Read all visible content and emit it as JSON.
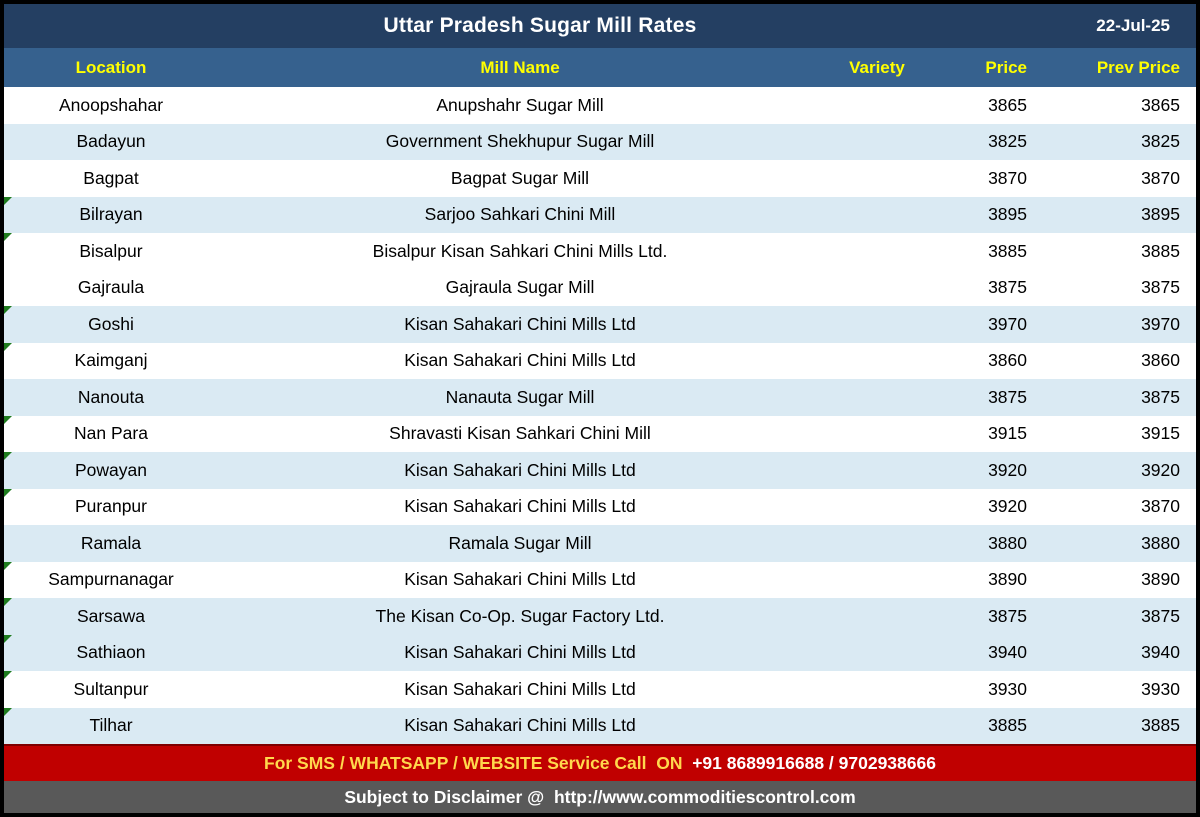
{
  "title_bar": {
    "title": "Uttar Pradesh Sugar Mill Rates",
    "date": "22-Jul-25"
  },
  "columns": {
    "location": "Location",
    "mill_name": "Mill Name",
    "variety": "Variety",
    "price": "Price",
    "prev_price": "Prev Price"
  },
  "rows": [
    {
      "location": "Anoopshahar",
      "mill_name": "Anupshahr Sugar Mill",
      "variety": "",
      "price": "3865",
      "prev_price": "3865",
      "shaded": false,
      "marker": false
    },
    {
      "location": "Badayun",
      "mill_name": "Government Shekhupur Sugar Mill",
      "variety": "",
      "price": "3825",
      "prev_price": "3825",
      "shaded": true,
      "marker": false
    },
    {
      "location": "Bagpat",
      "mill_name": "Bagpat Sugar Mill",
      "variety": "",
      "price": "3870",
      "prev_price": "3870",
      "shaded": false,
      "marker": false
    },
    {
      "location": "Bilrayan",
      "mill_name": "Sarjoo Sahkari Chini Mill",
      "variety": "",
      "price": "3895",
      "prev_price": "3895",
      "shaded": true,
      "marker": true
    },
    {
      "location": "Bisalpur",
      "mill_name": "Bisalpur Kisan Sahkari Chini Mills Ltd.",
      "variety": "",
      "price": "3885",
      "prev_price": "3885",
      "shaded": false,
      "marker": true
    },
    {
      "location": "Gajraula",
      "mill_name": "Gajraula Sugar Mill",
      "variety": "",
      "price": "3875",
      "prev_price": "3875",
      "shaded": false,
      "marker": false
    },
    {
      "location": "Goshi",
      "mill_name": "Kisan Sahakari Chini Mills Ltd",
      "variety": "",
      "price": "3970",
      "prev_price": "3970",
      "shaded": true,
      "marker": true
    },
    {
      "location": "Kaimganj",
      "mill_name": "Kisan Sahakari Chini Mills Ltd",
      "variety": "",
      "price": "3860",
      "prev_price": "3860",
      "shaded": false,
      "marker": true
    },
    {
      "location": "Nanouta",
      "mill_name": "Nanauta Sugar Mill",
      "variety": "",
      "price": "3875",
      "prev_price": "3875",
      "shaded": true,
      "marker": false
    },
    {
      "location": "Nan Para",
      "mill_name": "Shravasti Kisan Sahkari Chini Mill",
      "variety": "",
      "price": "3915",
      "prev_price": "3915",
      "shaded": false,
      "marker": true
    },
    {
      "location": "Powayan",
      "mill_name": "Kisan Sahakari Chini Mills Ltd",
      "variety": "",
      "price": "3920",
      "prev_price": "3920",
      "shaded": true,
      "marker": true
    },
    {
      "location": "Puranpur",
      "mill_name": "Kisan Sahakari Chini Mills Ltd",
      "variety": "",
      "price": "3920",
      "prev_price": "3870",
      "shaded": false,
      "marker": true
    },
    {
      "location": "Ramala",
      "mill_name": "Ramala Sugar Mill",
      "variety": "",
      "price": "3880",
      "prev_price": "3880",
      "shaded": true,
      "marker": false
    },
    {
      "location": "Sampurnanagar",
      "mill_name": "Kisan Sahakari Chini Mills Ltd",
      "variety": "",
      "price": "3890",
      "prev_price": "3890",
      "shaded": false,
      "marker": true
    },
    {
      "location": "Sarsawa",
      "mill_name": "The Kisan Co-Op. Sugar Factory Ltd.",
      "variety": "",
      "price": "3875",
      "prev_price": "3875",
      "shaded": true,
      "marker": true
    },
    {
      "location": "Sathiaon",
      "mill_name": "Kisan Sahakari Chini Mills Ltd",
      "variety": "",
      "price": "3940",
      "prev_price": "3940",
      "shaded": true,
      "marker": true
    },
    {
      "location": "Sultanpur",
      "mill_name": "Kisan Sahakari Chini Mills Ltd",
      "variety": "",
      "price": "3930",
      "prev_price": "3930",
      "shaded": false,
      "marker": true
    },
    {
      "location": "Tilhar",
      "mill_name": "Kisan Sahakari Chini Mills Ltd",
      "variety": "",
      "price": "3885",
      "prev_price": "3885",
      "shaded": true,
      "marker": true
    }
  ],
  "footer": {
    "service_label": "For SMS / WHATSAPP / WEBSITE Service Call  ON  ",
    "service_phones": "+91 8689916688 / 9702938666",
    "disclaimer": "Subject to Disclaimer @  ",
    "website": "http://www.commoditiescontrol.com"
  },
  "colors": {
    "title_bg": "#243F62",
    "header_bg": "#36618E",
    "header_text": "#FFFF00",
    "row_stripe": "#DAEAF3",
    "band_red": "#C00000",
    "band_red_text_yellow": "#FFD84D",
    "band_gray": "#595959",
    "marker_green": "#1E7B1E"
  },
  "chart_data": {
    "type": "table",
    "title": "Uttar Pradesh Sugar Mill Rates",
    "date": "22-Jul-25",
    "columns": [
      "Location",
      "Mill Name",
      "Variety",
      "Price",
      "Prev Price"
    ],
    "values": [
      [
        "Anoopshahar",
        "Anupshahr Sugar Mill",
        "",
        3865,
        3865
      ],
      [
        "Badayun",
        "Government Shekhupur Sugar Mill",
        "",
        3825,
        3825
      ],
      [
        "Bagpat",
        "Bagpat Sugar Mill",
        "",
        3870,
        3870
      ],
      [
        "Bilrayan",
        "Sarjoo Sahkari Chini Mill",
        "",
        3895,
        3895
      ],
      [
        "Bisalpur",
        "Bisalpur Kisan Sahkari Chini Mills Ltd.",
        "",
        3885,
        3885
      ],
      [
        "Gajraula",
        "Gajraula Sugar Mill",
        "",
        3875,
        3875
      ],
      [
        "Goshi",
        "Kisan Sahakari Chini Mills Ltd",
        "",
        3970,
        3970
      ],
      [
        "Kaimganj",
        "Kisan Sahakari Chini Mills Ltd",
        "",
        3860,
        3860
      ],
      [
        "Nanouta",
        "Nanauta Sugar Mill",
        "",
        3875,
        3875
      ],
      [
        "Nan Para",
        "Shravasti Kisan Sahkari Chini Mill",
        "",
        3915,
        3915
      ],
      [
        "Powayan",
        "Kisan Sahakari Chini Mills Ltd",
        "",
        3920,
        3920
      ],
      [
        "Puranpur",
        "Kisan Sahakari Chini Mills Ltd",
        "",
        3920,
        3870
      ],
      [
        "Ramala",
        "Ramala Sugar Mill",
        "",
        3880,
        3880
      ],
      [
        "Sampurnanagar",
        "Kisan Sahakari Chini Mills Ltd",
        "",
        3890,
        3890
      ],
      [
        "Sarsawa",
        "The Kisan Co-Op. Sugar Factory Ltd.",
        "",
        3875,
        3875
      ],
      [
        "Sathiaon",
        "Kisan Sahakari Chini Mills Ltd",
        "",
        3940,
        3940
      ],
      [
        "Sultanpur",
        "Kisan Sahakari Chini Mills Ltd",
        "",
        3930,
        3930
      ],
      [
        "Tilhar",
        "Kisan Sahakari Chini Mills Ltd",
        "",
        3885,
        3885
      ]
    ]
  }
}
